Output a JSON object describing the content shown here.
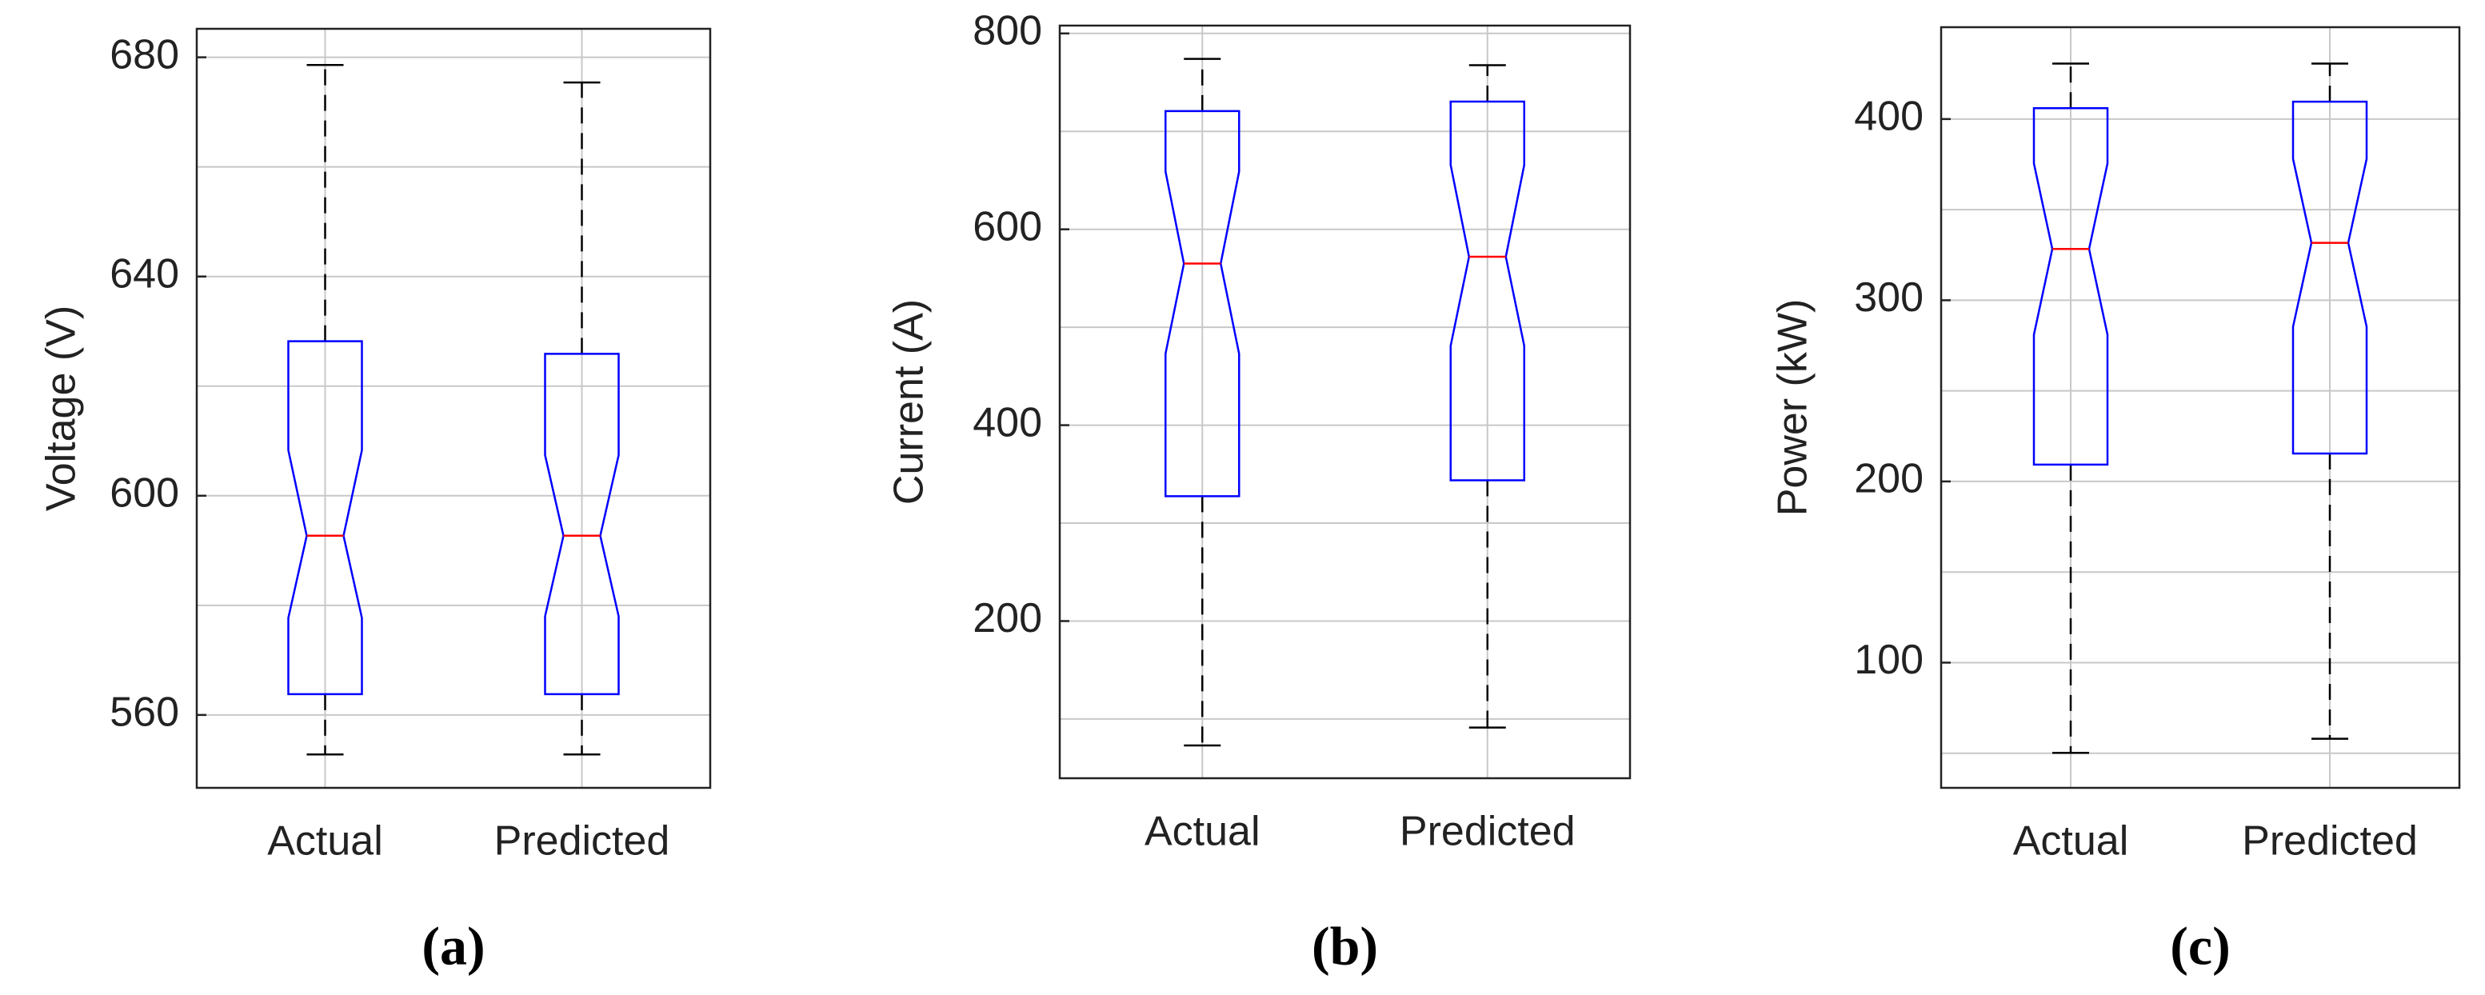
{
  "chart_data": [
    {
      "type": "box",
      "ylabel": "Voltage (V)",
      "caption": "(a)",
      "categories": [
        "Actual",
        "Predicted"
      ],
      "boxes": [
        {
          "whisker_low": 552.8,
          "q1": 563.8,
          "notch_low": 577.7,
          "median": 592.7,
          "notch_high": 608.3,
          "q3": 628.2,
          "whisker_high": 678.6
        },
        {
          "whisker_low": 552.8,
          "q1": 563.8,
          "notch_low": 578,
          "median": 592.7,
          "notch_high": 607.4,
          "q3": 625.9,
          "whisker_high": 675.4
        }
      ],
      "ylim": [
        546.7,
        685.2
      ],
      "yticks": [
        560,
        600,
        640,
        680
      ],
      "ygrid": [
        560,
        580,
        600,
        620,
        640,
        660,
        680
      ],
      "grid": true,
      "box_color": "#0000ff",
      "median_color": "#ff0000",
      "whisker_color": "#000000"
    },
    {
      "type": "box",
      "ylabel": "Current (A)",
      "caption": "(b)",
      "categories": [
        "Actual",
        "Predicted"
      ],
      "boxes": [
        {
          "whisker_low": 73,
          "q1": 327.5,
          "notch_low": 473,
          "median": 565,
          "notch_high": 659,
          "q3": 720.7,
          "whisker_high": 774
        },
        {
          "whisker_low": 91.3,
          "q1": 343.7,
          "notch_low": 481,
          "median": 572,
          "notch_high": 665.7,
          "q3": 730.4,
          "whisker_high": 767.6
        }
      ],
      "ylim": [
        39.5,
        808
      ],
      "yticks": [
        200,
        400,
        600,
        800
      ],
      "ygrid": [
        100,
        200,
        300,
        400,
        500,
        600,
        700,
        800
      ],
      "grid": true,
      "box_color": "#0000ff",
      "median_color": "#ff0000",
      "whisker_color": "#000000"
    },
    {
      "type": "box",
      "ylabel": "Power (kW)",
      "caption": "(c)",
      "categories": [
        "Actual",
        "Predicted"
      ],
      "boxes": [
        {
          "whisker_low": 50.2,
          "q1": 209.3,
          "notch_low": 281,
          "median": 328.3,
          "notch_high": 375.5,
          "q3": 406,
          "whisker_high": 430.6
        },
        {
          "whisker_low": 58,
          "q1": 215.4,
          "notch_low": 285.4,
          "median": 331.7,
          "notch_high": 378,
          "q3": 409.6,
          "whisker_high": 430.6
        }
      ],
      "ylim": [
        30.9,
        450.7
      ],
      "yticks": [
        100,
        200,
        300,
        400
      ],
      "ygrid": [
        50,
        100,
        150,
        200,
        250,
        300,
        350,
        400
      ],
      "grid": true,
      "box_color": "#0000ff",
      "median_color": "#ff0000",
      "whisker_color": "#000000"
    }
  ]
}
